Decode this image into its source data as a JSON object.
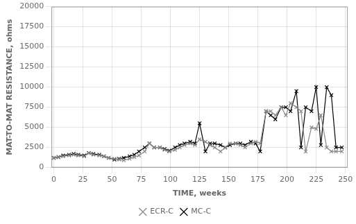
{
  "chart_data": {
    "type": "line",
    "xlabel": "TIME, weeks",
    "ylabel": "MAT-TO-MAT RESISTANCE, ohms",
    "xlim": [
      -2,
      252
    ],
    "ylim": [
      0,
      20000
    ],
    "xticks": [
      0,
      25,
      50,
      75,
      100,
      125,
      150,
      175,
      200,
      225,
      250
    ],
    "yticks": [
      0,
      2500,
      5000,
      7500,
      10000,
      12500,
      15000,
      17500,
      20000
    ],
    "grid": true,
    "legend": "bottom",
    "x": [
      0,
      4,
      8,
      13,
      17,
      21,
      26,
      30,
      34,
      39,
      43,
      47,
      52,
      56,
      60,
      65,
      69,
      73,
      78,
      82,
      86,
      91,
      95,
      99,
      104,
      108,
      112,
      117,
      121,
      125,
      130,
      134,
      138,
      143,
      147,
      151,
      156,
      160,
      164,
      169,
      173,
      177,
      182,
      186,
      190,
      195,
      199,
      203,
      208,
      212,
      216,
      221,
      225,
      229,
      234,
      238,
      242,
      247
    ],
    "series": [
      {
        "name": "ECR-C",
        "color": "#888888",
        "marker": "x",
        "line_style": "solid",
        "values": [
          1200,
          1300,
          1400,
          1500,
          1600,
          1500,
          1400,
          1800,
          1600,
          1500,
          1400,
          1200,
          1100,
          1000,
          900,
          1100,
          1300,
          1500,
          2000,
          3000,
          2500,
          2500,
          2200,
          2000,
          2200,
          2500,
          2800,
          3000,
          2800,
          3500,
          3200,
          2800,
          2500,
          2000,
          2500,
          3000,
          3000,
          2800,
          2500,
          3000,
          3200,
          3000,
          7000,
          7000,
          6500,
          7500,
          6500,
          8000,
          7500,
          7000,
          2000,
          5000,
          4800,
          6500,
          2500,
          2000,
          2000,
          2000
        ]
      },
      {
        "name": "MC-C",
        "color": "#000000",
        "marker": "x",
        "line_style": "solid",
        "values": [
          1200,
          1300,
          1500,
          1600,
          1700,
          1600,
          1500,
          1800,
          1700,
          1600,
          1400,
          1200,
          1000,
          1100,
          1200,
          1400,
          1600,
          2000,
          2500,
          3000,
          2500,
          2500,
          2300,
          2100,
          2500,
          2800,
          3000,
          3200,
          3000,
          5500,
          2000,
          3000,
          3000,
          2800,
          2500,
          2800,
          3000,
          3000,
          2800,
          3200,
          3000,
          2000,
          7000,
          6500,
          6000,
          7500,
          7500,
          7000,
          9500,
          2500,
          7500,
          7000,
          10000,
          2800,
          10000,
          9000,
          2500,
          2500
        ]
      }
    ]
  }
}
